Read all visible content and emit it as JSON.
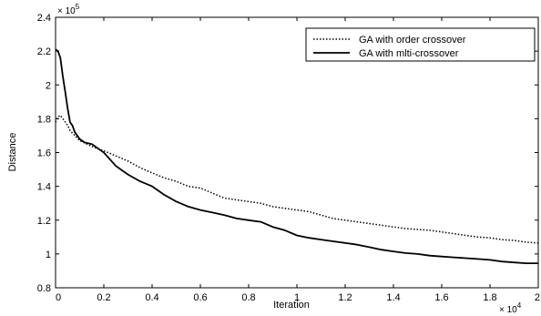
{
  "chart_data": {
    "type": "line",
    "title": "",
    "xlabel": "Iteration",
    "ylabel": "Distance",
    "xlim": [
      0,
      20000
    ],
    "ylim": [
      80000,
      240000
    ],
    "x_tick_labels": [
      "0",
      "0.2",
      "0.4",
      "0.6",
      "0.8",
      "1",
      "1.2",
      "1.4",
      "1.6",
      "1.8",
      "2"
    ],
    "y_tick_labels": [
      "0.8",
      "1",
      "1.2",
      "1.4",
      "1.6",
      "1.8",
      "2",
      "2.2",
      "2.4"
    ],
    "x_multiplier": "× 10",
    "x_multiplier_exp": "4",
    "y_multiplier": "× 10",
    "y_multiplier_exp": "5",
    "legend_position": "top-right",
    "grid": false,
    "series": [
      {
        "name": "GA with order crossover",
        "style": "dotted",
        "color": "#000000",
        "points": [
          [
            0,
            178000
          ],
          [
            100,
            181000
          ],
          [
            200,
            182000
          ],
          [
            300,
            180000
          ],
          [
            400,
            178000
          ],
          [
            500,
            176000
          ],
          [
            600,
            173000
          ],
          [
            800,
            170000
          ],
          [
            1000,
            167000
          ],
          [
            1300,
            165000
          ],
          [
            1600,
            163000
          ],
          [
            2000,
            161000
          ],
          [
            2500,
            158000
          ],
          [
            3000,
            155000
          ],
          [
            3500,
            151000
          ],
          [
            4000,
            148000
          ],
          [
            4500,
            145000
          ],
          [
            5000,
            143000
          ],
          [
            5500,
            140000
          ],
          [
            6000,
            139000
          ],
          [
            6500,
            136000
          ],
          [
            7000,
            133000
          ],
          [
            7500,
            132000
          ],
          [
            8000,
            131000
          ],
          [
            8500,
            130000
          ],
          [
            9000,
            128000
          ],
          [
            9500,
            127000
          ],
          [
            10000,
            126000
          ],
          [
            10500,
            125000
          ],
          [
            11000,
            123000
          ],
          [
            11500,
            121000
          ],
          [
            12000,
            120000
          ],
          [
            12500,
            119000
          ],
          [
            13000,
            118000
          ],
          [
            13500,
            117000
          ],
          [
            14000,
            116000
          ],
          [
            14500,
            115000
          ],
          [
            15000,
            114500
          ],
          [
            15500,
            114000
          ],
          [
            16000,
            113000
          ],
          [
            16500,
            112000
          ],
          [
            17000,
            111000
          ],
          [
            17500,
            110000
          ],
          [
            18000,
            109500
          ],
          [
            18500,
            108500
          ],
          [
            19000,
            108000
          ],
          [
            19500,
            107000
          ],
          [
            20000,
            106500
          ]
        ]
      },
      {
        "name": "GA with mlti-crossover",
        "style": "solid",
        "color": "#000000",
        "points": [
          [
            0,
            221000
          ],
          [
            100,
            220000
          ],
          [
            200,
            216000
          ],
          [
            300,
            205000
          ],
          [
            400,
            196000
          ],
          [
            500,
            186000
          ],
          [
            600,
            178000
          ],
          [
            700,
            176000
          ],
          [
            800,
            172000
          ],
          [
            1000,
            168000
          ],
          [
            1200,
            166000
          ],
          [
            1500,
            165000
          ],
          [
            2000,
            160000
          ],
          [
            2500,
            152000
          ],
          [
            3000,
            147000
          ],
          [
            3500,
            143000
          ],
          [
            4000,
            140000
          ],
          [
            4500,
            135000
          ],
          [
            5000,
            131000
          ],
          [
            5500,
            128000
          ],
          [
            6000,
            126000
          ],
          [
            6500,
            124500
          ],
          [
            7000,
            123000
          ],
          [
            7500,
            121000
          ],
          [
            8000,
            120000
          ],
          [
            8500,
            119000
          ],
          [
            9000,
            116000
          ],
          [
            9500,
            114000
          ],
          [
            10000,
            111000
          ],
          [
            10500,
            109500
          ],
          [
            11000,
            108500
          ],
          [
            11500,
            107500
          ],
          [
            12000,
            106500
          ],
          [
            12500,
            105500
          ],
          [
            13000,
            104000
          ],
          [
            13500,
            102500
          ],
          [
            14000,
            101500
          ],
          [
            14500,
            100500
          ],
          [
            15000,
            100000
          ],
          [
            15500,
            99000
          ],
          [
            16000,
            98500
          ],
          [
            16500,
            98000
          ],
          [
            17000,
            97500
          ],
          [
            17500,
            97000
          ],
          [
            18000,
            96500
          ],
          [
            18500,
            95500
          ],
          [
            19000,
            95000
          ],
          [
            19500,
            94500
          ],
          [
            20000,
            94500
          ]
        ]
      }
    ]
  }
}
